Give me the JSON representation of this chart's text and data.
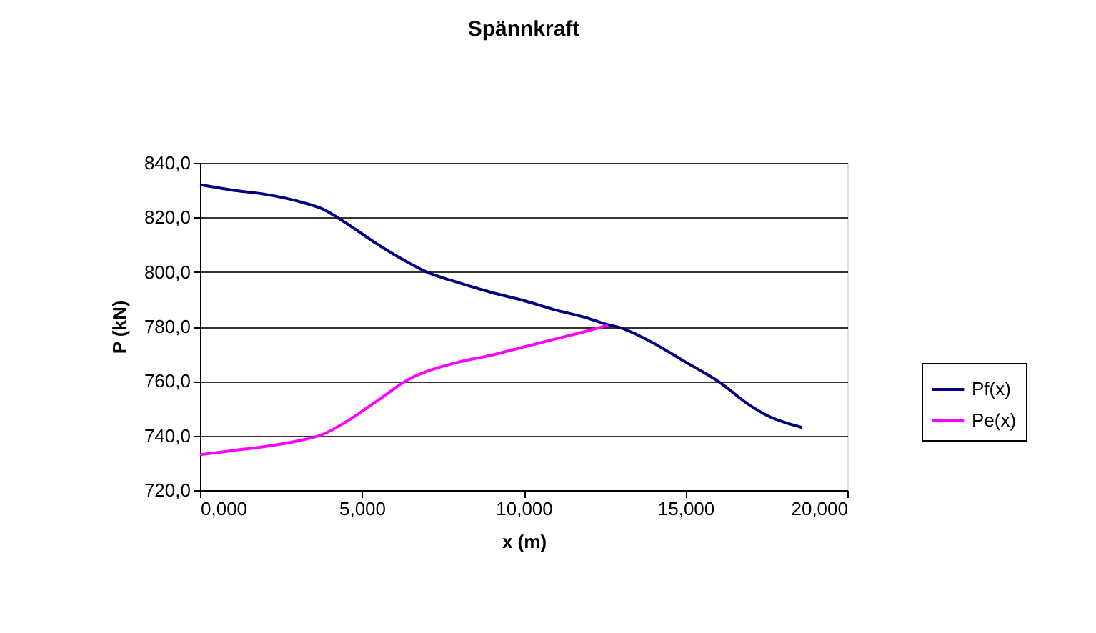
{
  "chart_data": {
    "type": "line",
    "title": "Spännkraft",
    "xlabel": "x (m)",
    "ylabel": "P (kN)",
    "xlim": [
      0,
      20
    ],
    "xticks": [
      {
        "value": 0,
        "label": "0,000"
      },
      {
        "value": 5,
        "label": "5,000"
      },
      {
        "value": 10,
        "label": "10,000"
      },
      {
        "value": 15,
        "label": "15,000"
      },
      {
        "value": 20,
        "label": "20,000"
      }
    ],
    "ylim": [
      720,
      840
    ],
    "yticks": [
      {
        "value": 720,
        "label": "720,0"
      },
      {
        "value": 740,
        "label": "740,0"
      },
      {
        "value": 760,
        "label": "760,0"
      },
      {
        "value": 780,
        "label": "780,0"
      },
      {
        "value": 800,
        "label": "800,0"
      },
      {
        "value": 820,
        "label": "820,0"
      },
      {
        "value": 840,
        "label": "840,0"
      }
    ],
    "grid": "y",
    "legend": "right",
    "marker": "none",
    "line_style": "solid",
    "series": [
      {
        "name": "Pf(x)",
        "color": "#000080",
        "x": [
          0,
          1,
          2,
          3,
          3.8,
          4.5,
          5.5,
          6.5,
          7,
          8,
          9,
          10,
          11,
          12,
          12.5,
          13,
          14,
          15,
          16,
          17,
          17.5,
          18.6
        ],
        "values": [
          832,
          830,
          828.5,
          826,
          823,
          818,
          810,
          803,
          800,
          796,
          792.5,
          789.5,
          786,
          783,
          781,
          779.5,
          774,
          767,
          760,
          751,
          747.5,
          743
        ]
      },
      {
        "name": "Pe(x)",
        "color": "#ff00ff",
        "x": [
          0,
          1,
          2,
          3,
          3.8,
          4.5,
          5.5,
          6.5,
          7,
          8,
          9,
          10,
          11,
          12,
          12.6
        ],
        "values": [
          733,
          734.5,
          736,
          738,
          740.5,
          745,
          753,
          761,
          763.5,
          767,
          769.5,
          772.5,
          775.5,
          778.5,
          780.5
        ]
      }
    ]
  }
}
